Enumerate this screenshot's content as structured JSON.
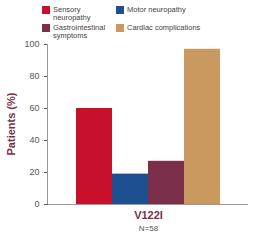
{
  "chart_data": {
    "type": "bar",
    "categories": [
      "V122I"
    ],
    "annotations": [
      "N=58"
    ],
    "y_label": "Patients (%)",
    "series": [
      {
        "name": "Sensory neuropathy",
        "color": "#c8102e",
        "values": [
          60
        ]
      },
      {
        "name": "Motor neuropathy",
        "color": "#1d4f91",
        "values": [
          19
        ]
      },
      {
        "name": "Gastrointestinal symptoms",
        "color": "#7b2f4b",
        "values": [
          27
        ]
      },
      {
        "name": "Cardiac complications",
        "color": "#c9995f",
        "values": [
          97
        ]
      }
    ],
    "ylim": [
      0,
      100
    ],
    "yticks": [
      0,
      20,
      40,
      60,
      80,
      100
    ],
    "grid": false,
    "legend": "top-left"
  }
}
